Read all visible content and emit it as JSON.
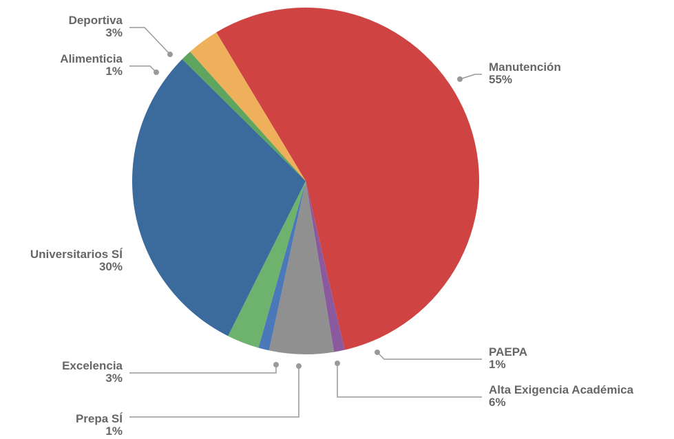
{
  "chart_data": {
    "type": "pie",
    "title": "",
    "start_angle_deg": 0,
    "direction": "clockwise",
    "slices": [
      {
        "label": "Manutención",
        "value": 55,
        "value_label": "55%",
        "color": "#cf4442"
      },
      {
        "label": "PAEPA",
        "value": 1,
        "value_label": "1%",
        "color": "#8b5a9e"
      },
      {
        "label": "Alta Exigencia Académica",
        "value": 6,
        "value_label": "6%",
        "color": "#8f908f"
      },
      {
        "label": "Prepa SÍ",
        "value": 1,
        "value_label": "1%",
        "color": "#4a78b8"
      },
      {
        "label": "Excelencia",
        "value": 3,
        "value_label": "3%",
        "color": "#6db26d"
      },
      {
        "label": "Universitarios SÍ",
        "value": 30,
        "value_label": "30%",
        "color": "#3b6b9c"
      },
      {
        "label": "Alimenticia",
        "value": 1,
        "value_label": "1%",
        "color": "#5fa55f"
      },
      {
        "label": "Deportiva",
        "value": 3,
        "value_label": "3%",
        "color": "#eeb05a"
      }
    ],
    "legend": "none",
    "labels": "outside-with-leader-lines",
    "leader_color": "#999999"
  }
}
